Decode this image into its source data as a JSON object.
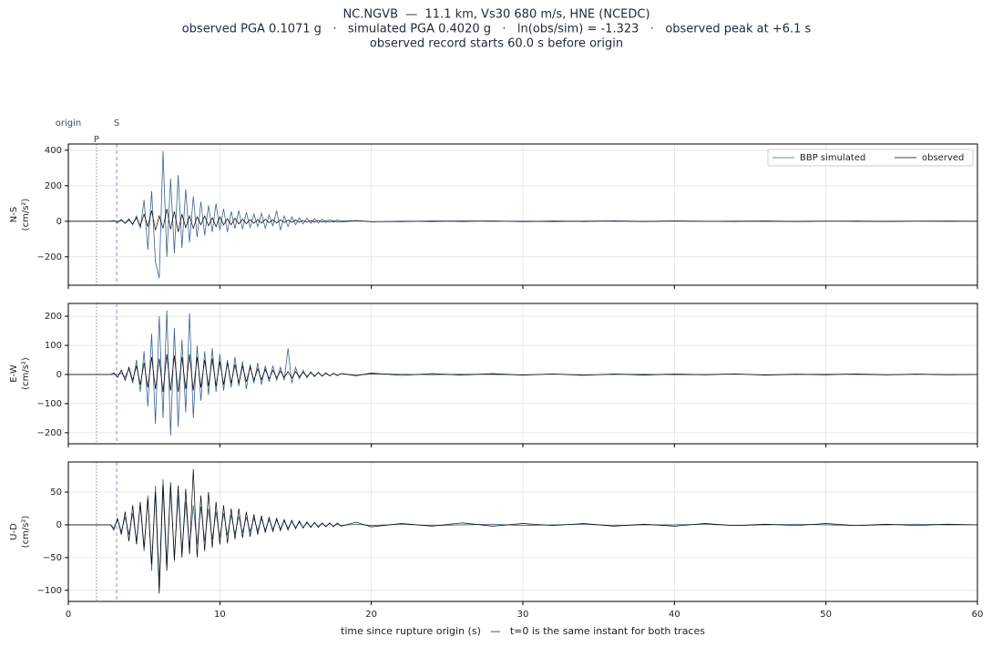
{
  "title": [
    "NC.NGVB  —  11.1 km, Vs30 680 m/s, HNE (NCEDC)",
    "observed PGA 0.1071 g   ·   simulated PGA 0.4020 g   ·   ln(obs/sim) = -1.323   ·   observed peak at +6.1 s",
    "observed record starts 60.0 s before origin"
  ],
  "xlabel": "time since rupture origin (s)   —   t=0 is the same instant for both traces",
  "phase_markers": [
    {
      "label": "origin",
      "x": 0
    },
    {
      "label": "P",
      "x": 1.86
    },
    {
      "label": "S",
      "x": 3.19
    }
  ],
  "chart_data": [
    {
      "type": "line",
      "ylabel": [
        "N-S",
        "(cm/s²)"
      ],
      "xlim": [
        0,
        60
      ],
      "xticks": [
        0,
        10,
        20,
        30,
        40,
        50,
        60
      ],
      "ylim": [
        -360,
        435
      ],
      "yticks": [
        {
          "value": -200,
          "label": "−200"
        },
        0,
        200,
        400
      ],
      "grid": true,
      "legend": "upper right",
      "x": [
        0,
        2,
        2.8,
        3,
        3.25,
        3.5,
        3.75,
        4,
        4.25,
        4.5,
        4.75,
        5,
        5.25,
        5.5,
        5.75,
        6,
        6.25,
        6.5,
        6.75,
        7,
        7.25,
        7.5,
        7.75,
        8,
        8.25,
        8.5,
        8.75,
        9,
        9.25,
        9.5,
        9.75,
        10,
        10.25,
        10.5,
        10.75,
        11,
        11.25,
        11.5,
        11.75,
        12,
        12.25,
        12.5,
        12.75,
        13,
        13.25,
        13.5,
        13.75,
        14,
        14.25,
        14.5,
        14.75,
        15,
        15.25,
        15.5,
        15.75,
        16,
        16.25,
        16.5,
        16.75,
        17,
        17.25,
        17.5,
        17.75,
        18,
        19,
        20,
        22,
        24,
        26,
        28,
        30,
        32,
        34,
        36,
        38,
        40,
        42,
        44,
        46,
        48,
        50,
        52,
        54,
        56,
        58,
        60
      ],
      "series": [
        {
          "name": "BBP simulated",
          "color": "#3a6390",
          "values": [
            0,
            0,
            0,
            0,
            0,
            5,
            -10,
            15,
            -20,
            30,
            -40,
            120,
            -160,
            170,
            -230,
            -320,
            395,
            -200,
            240,
            -180,
            260,
            -150,
            180,
            -120,
            140,
            -90,
            110,
            -80,
            90,
            -60,
            100,
            -50,
            70,
            -60,
            55,
            -40,
            60,
            -45,
            50,
            -35,
            40,
            -30,
            45,
            -40,
            35,
            -25,
            60,
            -50,
            30,
            -30,
            25,
            -20,
            20,
            -15,
            18,
            -12,
            15,
            -10,
            12,
            -8,
            10,
            -6,
            8,
            -5,
            4,
            -3,
            1,
            -2,
            2,
            -1,
            1,
            -2,
            1,
            0,
            -1,
            1,
            -1,
            1,
            0,
            -1,
            1,
            -1,
            0,
            1,
            -1,
            0
          ]
        },
        {
          "name": "observed",
          "color": "#000000",
          "values": [
            0,
            0,
            0,
            5,
            -8,
            10,
            -12,
            8,
            -15,
            20,
            -25,
            40,
            -30,
            60,
            -50,
            30,
            -40,
            70,
            -45,
            55,
            -60,
            40,
            -35,
            30,
            -40,
            25,
            -20,
            30,
            -25,
            20,
            -30,
            25,
            -20,
            15,
            -20,
            18,
            -15,
            12,
            -14,
            10,
            -12,
            10,
            -10,
            12,
            -8,
            9,
            -10,
            8,
            -8,
            7,
            -6,
            8,
            -6,
            5,
            -5,
            4,
            -4,
            5,
            -4,
            3,
            -3,
            3,
            -3,
            2,
            3,
            -2,
            -2,
            2,
            -1,
            2,
            -2,
            1,
            -1,
            2,
            -1,
            1,
            0,
            -1,
            1,
            -1,
            0,
            1,
            -1,
            0,
            1,
            0
          ]
        }
      ]
    },
    {
      "type": "line",
      "ylabel": [
        "E-W",
        "(cm/s²)"
      ],
      "xlim": [
        0,
        60
      ],
      "xticks": [
        0,
        10,
        20,
        30,
        40,
        50,
        60
      ],
      "ylim": [
        -238,
        244
      ],
      "yticks": [
        {
          "value": -200,
          "label": "−200"
        },
        {
          "value": -100,
          "label": "−100"
        },
        0,
        100,
        200
      ],
      "grid": true,
      "x": [
        0,
        2,
        2.8,
        3,
        3.25,
        3.5,
        3.75,
        4,
        4.25,
        4.5,
        4.75,
        5,
        5.25,
        5.5,
        5.75,
        6,
        6.25,
        6.5,
        6.75,
        7,
        7.25,
        7.5,
        7.75,
        8,
        8.25,
        8.5,
        8.75,
        9,
        9.25,
        9.5,
        9.75,
        10,
        10.25,
        10.5,
        10.75,
        11,
        11.25,
        11.5,
        11.75,
        12,
        12.25,
        12.5,
        12.75,
        13,
        13.25,
        13.5,
        13.75,
        14,
        14.25,
        14.5,
        14.75,
        15,
        15.25,
        15.5,
        15.75,
        16,
        16.25,
        16.5,
        16.75,
        17,
        17.25,
        17.5,
        17.75,
        18,
        19,
        20,
        22,
        24,
        26,
        28,
        30,
        32,
        34,
        36,
        38,
        40,
        42,
        44,
        46,
        48,
        50,
        52,
        54,
        56,
        58,
        60
      ],
      "series": [
        {
          "name": "BBP simulated",
          "color": "#3a6390",
          "values": [
            0,
            0,
            0,
            0,
            0,
            5,
            -10,
            20,
            -30,
            50,
            -60,
            80,
            -110,
            140,
            -170,
            200,
            -150,
            220,
            -210,
            160,
            -180,
            120,
            -130,
            210,
            -150,
            100,
            -90,
            80,
            -70,
            90,
            -60,
            70,
            -55,
            50,
            -45,
            60,
            -40,
            45,
            -50,
            35,
            -30,
            40,
            -35,
            30,
            -25,
            30,
            -20,
            25,
            -20,
            90,
            -30,
            25,
            -15,
            15,
            -12,
            10,
            -8,
            8,
            -6,
            6,
            -5,
            4,
            -4,
            3,
            -2,
            2,
            1,
            -1,
            1,
            0,
            -1,
            1,
            -1,
            0,
            1,
            -1,
            0,
            1,
            -1,
            0,
            1,
            0,
            -1,
            1,
            0,
            0
          ]
        },
        {
          "name": "observed",
          "color": "#000000",
          "values": [
            0,
            0,
            0,
            5,
            -10,
            15,
            -20,
            25,
            -20,
            30,
            -35,
            40,
            -45,
            60,
            -50,
            55,
            -60,
            70,
            -55,
            65,
            -60,
            60,
            -50,
            70,
            -55,
            60,
            -45,
            50,
            -40,
            55,
            -40,
            45,
            -35,
            40,
            -30,
            35,
            -30,
            30,
            -25,
            25,
            -20,
            20,
            -18,
            18,
            -15,
            15,
            -12,
            12,
            -10,
            10,
            -12,
            10,
            -8,
            8,
            -7,
            6,
            -5,
            6,
            -5,
            4,
            -4,
            4,
            -3,
            3,
            -4,
            5,
            -3,
            3,
            -2,
            3,
            -2,
            2,
            -3,
            2,
            -2,
            2,
            -1,
            2,
            -2,
            1,
            -1,
            2,
            -1,
            1,
            -1,
            0
          ]
        }
      ]
    },
    {
      "type": "line",
      "ylabel": [
        "U-D",
        "(cm/s²)"
      ],
      "xlim": [
        0,
        60
      ],
      "xticks": [
        0,
        10,
        20,
        30,
        40,
        50,
        60
      ],
      "ylim": [
        -117,
        96
      ],
      "yticks": [
        {
          "value": -100,
          "label": "−100"
        },
        {
          "value": -50,
          "label": "−50"
        },
        0,
        50
      ],
      "grid": true,
      "x": [
        0,
        2,
        2.8,
        3,
        3.25,
        3.5,
        3.75,
        4,
        4.25,
        4.5,
        4.75,
        5,
        5.25,
        5.5,
        5.75,
        6,
        6.25,
        6.5,
        6.75,
        7,
        7.25,
        7.5,
        7.75,
        8,
        8.25,
        8.5,
        8.75,
        9,
        9.25,
        9.5,
        9.75,
        10,
        10.25,
        10.5,
        10.75,
        11,
        11.25,
        11.5,
        11.75,
        12,
        12.25,
        12.5,
        12.75,
        13,
        13.25,
        13.5,
        13.75,
        14,
        14.25,
        14.5,
        14.75,
        15,
        15.25,
        15.5,
        15.75,
        16,
        16.25,
        16.5,
        16.75,
        17,
        17.25,
        17.5,
        17.75,
        18,
        19,
        20,
        22,
        24,
        26,
        28,
        30,
        32,
        34,
        36,
        38,
        40,
        42,
        44,
        46,
        48,
        50,
        52,
        54,
        56,
        58,
        60
      ],
      "series": [
        {
          "name": "BBP simulated",
          "color": "#3a6390",
          "values": [
            0,
            0,
            0,
            -5,
            8,
            -10,
            12,
            -15,
            18,
            -25,
            30,
            -40,
            45,
            -70,
            60,
            -90,
            70,
            -60,
            55,
            -50,
            45,
            -40,
            35,
            -35,
            30,
            -30,
            28,
            -25,
            25,
            -22,
            20,
            -20,
            18,
            -16,
            15,
            -14,
            13,
            -12,
            12,
            -10,
            10,
            -9,
            9,
            -8,
            8,
            -7,
            7,
            -6,
            6,
            -5,
            5,
            -4,
            4,
            -4,
            3,
            -3,
            3,
            -2,
            2,
            -2,
            2,
            -2,
            1,
            -1,
            1,
            -1,
            1,
            -1,
            0,
            1,
            -1,
            0,
            1,
            -1,
            0,
            0,
            1,
            -1,
            0,
            1,
            0,
            -1,
            0,
            1,
            0,
            0
          ]
        },
        {
          "name": "observed",
          "color": "#000000",
          "values": [
            0,
            0,
            0,
            -8,
            10,
            -15,
            20,
            -25,
            30,
            -30,
            35,
            -35,
            40,
            -60,
            50,
            -105,
            60,
            -70,
            65,
            -55,
            60,
            -50,
            55,
            -45,
            85,
            -50,
            45,
            -40,
            50,
            -35,
            35,
            -30,
            30,
            -28,
            25,
            -22,
            25,
            -20,
            20,
            -18,
            16,
            -15,
            14,
            -12,
            12,
            -10,
            10,
            -9,
            8,
            -8,
            7,
            -6,
            6,
            -5,
            5,
            -4,
            4,
            -4,
            3,
            -3,
            3,
            -3,
            3,
            -2,
            4,
            -3,
            2,
            -2,
            3,
            -2,
            2,
            -1,
            2,
            -2,
            1,
            -2,
            2,
            -1,
            1,
            -1,
            2,
            -1,
            1,
            -1,
            1,
            0
          ]
        }
      ]
    }
  ]
}
